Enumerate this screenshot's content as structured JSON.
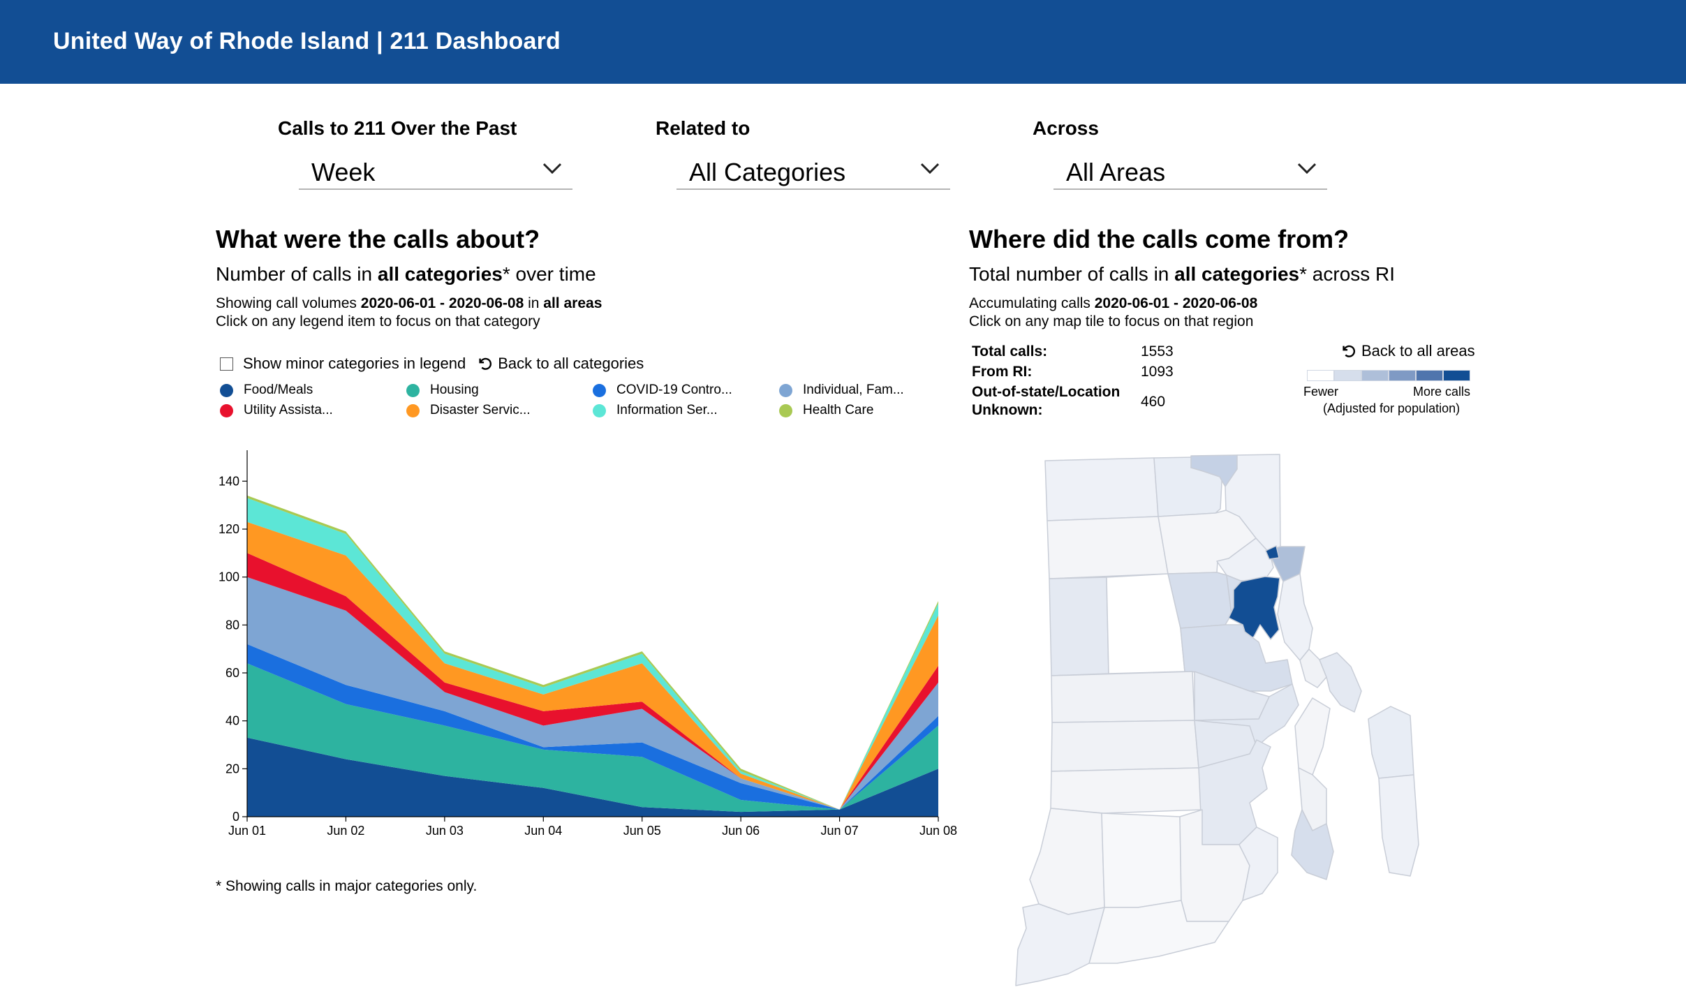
{
  "header": {
    "title": "United Way of Rhode Island | 211 Dashboard"
  },
  "filters": [
    {
      "label": "Calls to 211 Over the Past",
      "value": "Week"
    },
    {
      "label": "Related to",
      "value": "All Categories"
    },
    {
      "label": "Across",
      "value": "All Areas"
    }
  ],
  "left_panel": {
    "heading": "What were the calls about?",
    "subtitle_pre": "Number of calls in ",
    "subtitle_bold": "all categories",
    "subtitle_post": "* over time",
    "info_pre": "Showing call volumes ",
    "info_dates": "2020-06-01 - 2020-06-08",
    "info_mid": " in ",
    "info_area": "all areas",
    "info_line2": "Click on any legend item to focus on that category",
    "minor_checkbox_label": "Show minor categories in legend",
    "back_label": "Back to all categories",
    "footnote": "* Showing calls in major categories only."
  },
  "right_panel": {
    "heading": "Where did the calls come from?",
    "subtitle_pre": "Total number of calls in ",
    "subtitle_bold": "all categories",
    "subtitle_post": "* across RI",
    "info_pre": "Accumulating calls ",
    "info_dates": "2020-06-01 - 2020-06-08",
    "info_line2": "Click on any map tile to focus on that region",
    "back_label": "Back to all areas",
    "stats": {
      "total_label": "Total calls:",
      "total_value": "1553",
      "ri_label": "From RI:",
      "ri_value": "1093",
      "unknown_label_1": "Out-of-state/Location",
      "unknown_label_2": "Unknown:",
      "unknown_value": "460"
    },
    "scale": {
      "fewer": "Fewer",
      "more": "More calls",
      "note": "(Adjusted for population)",
      "colors": [
        "#ffffff",
        "#d6deec",
        "#aebfd9",
        "#7f9ac4",
        "#4f75ad",
        "#124e94"
      ]
    }
  },
  "chart_data": {
    "type": "area",
    "stacked": true,
    "x": [
      "Jun 01",
      "Jun 02",
      "Jun 03",
      "Jun 04",
      "Jun 05",
      "Jun 06",
      "Jun 07",
      "Jun 08"
    ],
    "ylim": [
      0,
      150
    ],
    "yticks": [
      0,
      20,
      40,
      60,
      80,
      100,
      120,
      140
    ],
    "legend": "top",
    "grid": false,
    "series": [
      {
        "name": "Food/Meals",
        "color": "#124e94",
        "values": [
          33,
          24,
          17,
          12,
          4,
          2,
          3,
          20
        ]
      },
      {
        "name": "Housing",
        "color": "#2db3a0",
        "values": [
          31,
          23,
          21,
          16,
          21,
          5,
          0,
          18
        ]
      },
      {
        "name": "COVID-19 Contro...",
        "color": "#1a6fdf",
        "values": [
          8,
          8,
          6,
          1,
          6,
          7,
          0,
          4
        ]
      },
      {
        "name": "Individual, Fam...",
        "color": "#7ea5d3",
        "values": [
          28,
          31,
          8,
          9,
          14,
          2,
          0,
          14
        ]
      },
      {
        "name": "Utility Assista...",
        "color": "#e8112d",
        "values": [
          10,
          6,
          4,
          6,
          3,
          0,
          0,
          7
        ]
      },
      {
        "name": "Disaster Servic...",
        "color": "#ff9822",
        "values": [
          13,
          17,
          8,
          7,
          16,
          2,
          0,
          21
        ]
      },
      {
        "name": "Information Ser...",
        "color": "#5ce6d6",
        "values": [
          10,
          9,
          4,
          3,
          4,
          1,
          0,
          5
        ]
      },
      {
        "name": "Health Care",
        "color": "#a9c953",
        "values": [
          1,
          1,
          1,
          1,
          1,
          1,
          0,
          1
        ]
      }
    ]
  },
  "map_data": {
    "towns": [
      {
        "id": "burrillville",
        "fill": "#eef1f7"
      },
      {
        "id": "north-smithfield",
        "fill": "#e8edf5"
      },
      {
        "id": "woonsocket",
        "fill": "#c5d1e5"
      },
      {
        "id": "cumberland",
        "fill": "#eef1f7"
      },
      {
        "id": "glocester",
        "fill": "#f4f5f8"
      },
      {
        "id": "smithfield",
        "fill": "#f4f5f8"
      },
      {
        "id": "lincoln",
        "fill": "#eef1f7"
      },
      {
        "id": "central-falls",
        "fill": "#124e94"
      },
      {
        "id": "pawtucket",
        "fill": "#aebfd9"
      },
      {
        "id": "east-providence",
        "fill": "#eef1f7"
      },
      {
        "id": "foster",
        "fill": "#e4e9f2"
      },
      {
        "id": "scituate",
        "fill": "#ffffff"
      },
      {
        "id": "johnston",
        "fill": "#d6deec"
      },
      {
        "id": "north-providence",
        "fill": "#d6deec"
      },
      {
        "id": "providence",
        "fill": "#124e94"
      },
      {
        "id": "cranston",
        "fill": "#d6deec"
      },
      {
        "id": "barrington",
        "fill": "#f0f2f6"
      },
      {
        "id": "west-greenwich",
        "fill": "#f0f2f6"
      },
      {
        "id": "coventry",
        "fill": "#e4e9f2"
      },
      {
        "id": "warwick",
        "fill": "#e1e7f1"
      },
      {
        "id": "bristol",
        "fill": "#e4e9f2"
      },
      {
        "id": "exeter",
        "fill": "#f4f5f8"
      },
      {
        "id": "east-greenwich",
        "fill": "#e4e9f2"
      },
      {
        "id": "north-kingstown",
        "fill": "#e4e9f2"
      },
      {
        "id": "portsmouth",
        "fill": "#f4f5f8"
      },
      {
        "id": "tiverton",
        "fill": "#e8edf5"
      },
      {
        "id": "middletown",
        "fill": "#f0f2f6"
      },
      {
        "id": "newport",
        "fill": "#d6deec"
      },
      {
        "id": "hopkinton",
        "fill": "#f4f5f8"
      },
      {
        "id": "richmond",
        "fill": "#f7f8fa"
      },
      {
        "id": "south-kingstown",
        "fill": "#f4f5f8"
      },
      {
        "id": "charlestown",
        "fill": "#f7f8fa"
      },
      {
        "id": "narragansett",
        "fill": "#eef1f7"
      },
      {
        "id": "westerly",
        "fill": "#eef1f7"
      },
      {
        "id": "little-compton",
        "fill": "#eef1f7"
      }
    ]
  }
}
